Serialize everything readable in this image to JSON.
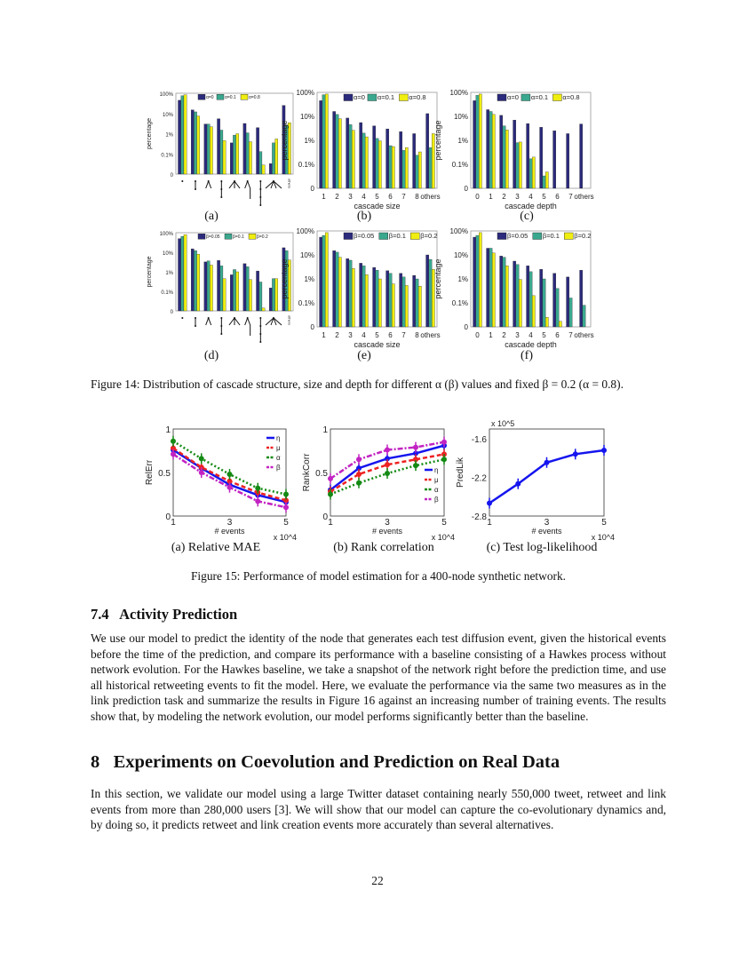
{
  "figure14": {
    "caption": "Figure 14: Distribution of cascade structure, size and depth for different α (β) values and fixed β = 0.2 (α = 0.8).",
    "sublabels": [
      "(a)",
      "(b)",
      "(c)",
      "(d)",
      "(e)",
      "(f)"
    ]
  },
  "figure15": {
    "caption": "Figure 15: Performance of model estimation for a 400-node synthetic network.",
    "sublabels": [
      "(a) Relative MAE",
      "(b) Rank correlation",
      "(c) Test log-likelihood"
    ]
  },
  "section74": {
    "heading": "7.4   Activity Prediction",
    "body": "We use our model to predict the identity of the node that generates each test diffusion event, given the historical events before the time of the prediction, and compare its performance with a baseline consisting of a Hawkes process without network evolution. For the Hawkes baseline, we take a snapshot of the network right before the prediction time, and use all historical retweeting events to fit the model. Here, we evaluate the performance via the same two measures as in the link prediction task and summarize the results in Figure 16 against an increasing number of training events. The results show that, by modeling the network evolution, our model performs significantly better than the baseline."
  },
  "section8": {
    "heading": "8   Experiments on Coevolution and Prediction on Real Data",
    "body": "In this section, we validate our model using a large Twitter dataset containing nearly 550,000 tweet, retweet and link events from more than 280,000 users [3]. We will show that our model can capture the co-evolutionary dynamics and, by doing so, it predicts retweet and link creation events more accurately than several alternatives."
  },
  "page_number": "22",
  "colors": {
    "series1": "#2b2a7c",
    "series2": "#3aa88e",
    "series3": "#f0ee10",
    "eta": "#1515ee",
    "mu": "#ee2222",
    "alpha": "#138a13",
    "beta": "#c223c2"
  },
  "chart_data": [
    {
      "id": "14a",
      "type": "bar",
      "yscale": "log",
      "ylabel": "percentage",
      "xlabel": "",
      "yticks": [
        "0",
        "0.1%",
        "1%",
        "10%",
        "100%"
      ],
      "ylim_percent": [
        0.01,
        100
      ],
      "categories": [
        "",
        "",
        "",
        "",
        "",
        "",
        "",
        "",
        "others"
      ],
      "category_icons": [
        "single-node",
        "chain-2",
        "star-2",
        "chain-3",
        "star-3",
        "branch",
        "chain-4",
        "star-4",
        "others"
      ],
      "legend_placement": "top-right",
      "series": [
        {
          "name": "α=0",
          "values": [
            45,
            15,
            3,
            5.5,
            0.35,
            3.2,
            2,
            0.033,
            25
          ]
        },
        {
          "name": "α=0.1",
          "values": [
            75,
            12,
            3,
            1.5,
            0.85,
            1.1,
            0.13,
            0.35,
            2.7
          ]
        },
        {
          "name": "α=0.8",
          "values": [
            85,
            7.5,
            2.2,
            0.45,
            1.0,
            0.4,
            0.028,
            0.55,
            3.5
          ]
        }
      ]
    },
    {
      "id": "14b",
      "type": "bar",
      "yscale": "log",
      "ylabel": "percentage",
      "xlabel": "cascade size",
      "yticks": [
        "0",
        "0.1%",
        "1%",
        "10%",
        "100%"
      ],
      "ylim_percent": [
        0.01,
        100
      ],
      "categories": [
        "1",
        "2",
        "3",
        "4",
        "5",
        "6",
        "7",
        "8",
        "others"
      ],
      "legend_placement": "top-right",
      "series": [
        {
          "name": "α=0",
          "values": [
            45,
            16,
            8.5,
            5.5,
            4,
            3,
            2.3,
            1.9,
            13
          ]
        },
        {
          "name": "α=0.1",
          "values": [
            80,
            12,
            4.5,
            2,
            1.2,
            0.6,
            0.38,
            0.24,
            0.5
          ]
        },
        {
          "name": "α=0.8",
          "values": [
            85,
            8,
            2.6,
            1.4,
            0.95,
            0.55,
            0.5,
            0.33,
            1.9
          ]
        }
      ]
    },
    {
      "id": "14c",
      "type": "bar",
      "yscale": "log",
      "ylabel": "percentage",
      "xlabel": "cascade depth",
      "yticks": [
        "0",
        "0.1%",
        "1%",
        "10%",
        "100%"
      ],
      "ylim_percent": [
        0.01,
        100
      ],
      "categories": [
        "0",
        "1",
        "2",
        "3",
        "4",
        "5",
        "6",
        "7",
        "others"
      ],
      "legend_placement": "top-right",
      "series": [
        {
          "name": "α=0",
          "values": [
            45,
            19,
            11,
            7,
            5,
            3.5,
            2.5,
            1.9,
            4.8
          ]
        },
        {
          "name": "α=0.1",
          "values": [
            75,
            16,
            4,
            0.8,
            0.17,
            0.033,
            null,
            null,
            null
          ]
        },
        {
          "name": "α=0.8",
          "values": [
            85,
            12,
            2.7,
            0.85,
            0.2,
            0.048,
            null,
            null,
            null
          ]
        }
      ]
    },
    {
      "id": "14d",
      "type": "bar",
      "yscale": "log",
      "ylabel": "percentage",
      "xlabel": "",
      "yticks": [
        "0",
        "0.1%",
        "1%",
        "10%",
        "100%"
      ],
      "ylim_percent": [
        0.01,
        100
      ],
      "categories": [
        "",
        "",
        "",
        "",
        "",
        "",
        "",
        "",
        "others"
      ],
      "category_icons": [
        "single-node",
        "chain-2",
        "star-2",
        "chain-3",
        "star-3",
        "branch",
        "chain-4",
        "star-4",
        "others"
      ],
      "legend_placement": "top-right",
      "series": [
        {
          "name": "β=0.05",
          "values": [
            50,
            15,
            3.2,
            3.8,
            0.7,
            2.6,
            1.1,
            0.15,
            17
          ]
        },
        {
          "name": "β=0.1",
          "values": [
            65,
            12,
            3.6,
            2,
            1.3,
            1.8,
            0.3,
            0.45,
            12
          ]
        },
        {
          "name": "β=0.2",
          "values": [
            80,
            8,
            2.2,
            0.45,
            1.0,
            0.4,
            0.014,
            0.45,
            4
          ]
        }
      ]
    },
    {
      "id": "14e",
      "type": "bar",
      "yscale": "log",
      "ylabel": "percentage",
      "xlabel": "cascade size",
      "yticks": [
        "0",
        "0.1%",
        "1%",
        "10%",
        "100%"
      ],
      "ylim_percent": [
        0.01,
        100
      ],
      "categories": [
        "1",
        "2",
        "3",
        "4",
        "5",
        "6",
        "7",
        "8",
        "others"
      ],
      "legend_placement": "top-right",
      "series": [
        {
          "name": "β=0.05",
          "values": [
            55,
            15,
            7,
            4.5,
            3,
            2.2,
            1.7,
            1.4,
            10
          ]
        },
        {
          "name": "β=0.1",
          "values": [
            65,
            13,
            6,
            3.5,
            2.3,
            1.7,
            1.2,
            1.0,
            6.5
          ]
        },
        {
          "name": "β=0.2",
          "values": [
            85,
            8,
            2.7,
            1.5,
            1.0,
            0.62,
            0.53,
            0.5,
            2.5
          ]
        }
      ]
    },
    {
      "id": "14f",
      "type": "bar",
      "yscale": "log",
      "ylabel": "percentage",
      "xlabel": "cascade depth",
      "yticks": [
        "0",
        "0.1%",
        "1%",
        "10%",
        "100%"
      ],
      "ylim_percent": [
        0.01,
        100
      ],
      "categories": [
        "0",
        "1",
        "2",
        "3",
        "4",
        "5",
        "6",
        "7",
        "others"
      ],
      "legend_placement": "top-right",
      "series": [
        {
          "name": "β=0.05",
          "values": [
            55,
            19,
            9,
            5.5,
            3.5,
            2.5,
            1.7,
            1.2,
            2.3
          ]
        },
        {
          "name": "β=0.1",
          "values": [
            65,
            19,
            8,
            4,
            2,
            1,
            0.4,
            0.16,
            0.08
          ]
        },
        {
          "name": "β=0.2",
          "values": [
            85,
            12,
            3.5,
            0.95,
            0.2,
            0.025,
            0.017,
            null,
            null
          ]
        }
      ]
    },
    {
      "id": "15a",
      "type": "line",
      "ylabel": "RelErr",
      "xlabel": "# events",
      "x_multiplier": "x 10^4",
      "x": [
        1,
        2,
        3,
        4,
        5
      ],
      "xticks": [
        "1",
        "3",
        "5"
      ],
      "yticks": [
        "0",
        "0.5",
        "1"
      ],
      "ylim": [
        0,
        1
      ],
      "legend_placement": "top-right",
      "series": [
        {
          "name": "η",
          "values": [
            0.76,
            0.55,
            0.36,
            0.24,
            0.16
          ]
        },
        {
          "name": "μ",
          "values": [
            0.78,
            0.56,
            0.4,
            0.27,
            0.18
          ]
        },
        {
          "name": "α",
          "values": [
            0.86,
            0.66,
            0.48,
            0.32,
            0.25
          ]
        },
        {
          "name": "β",
          "values": [
            0.71,
            0.5,
            0.33,
            0.17,
            0.1
          ]
        }
      ]
    },
    {
      "id": "15b",
      "type": "line",
      "ylabel": "RankCorr",
      "xlabel": "# events",
      "x_multiplier": "x 10^4",
      "x": [
        1,
        2,
        3,
        4,
        5
      ],
      "xticks": [
        "1",
        "3",
        "5"
      ],
      "yticks": [
        "0",
        "0.5",
        "1"
      ],
      "ylim": [
        0,
        1
      ],
      "legend_placement": "bottom-right",
      "series": [
        {
          "name": "η",
          "values": [
            0.3,
            0.55,
            0.66,
            0.72,
            0.81
          ]
        },
        {
          "name": "μ",
          "values": [
            0.28,
            0.48,
            0.59,
            0.65,
            0.71
          ]
        },
        {
          "name": "α",
          "values": [
            0.25,
            0.38,
            0.49,
            0.58,
            0.65
          ]
        },
        {
          "name": "β",
          "values": [
            0.43,
            0.65,
            0.76,
            0.79,
            0.85
          ]
        }
      ]
    },
    {
      "id": "15c",
      "type": "line",
      "ylabel": "PredLik",
      "xlabel": "# events",
      "x_multiplier": "x 10^4",
      "y_multiplier": "x 10^5",
      "x": [
        1,
        2,
        3,
        4,
        5
      ],
      "xticks": [
        "1",
        "3",
        "5"
      ],
      "yticks": [
        "-2.8",
        "-2.2",
        "-1.6"
      ],
      "ylim": [
        -2.8,
        -1.45
      ],
      "series": [
        {
          "values": [
            -2.6,
            -2.3,
            -1.97,
            -1.84,
            -1.78
          ]
        }
      ]
    }
  ]
}
